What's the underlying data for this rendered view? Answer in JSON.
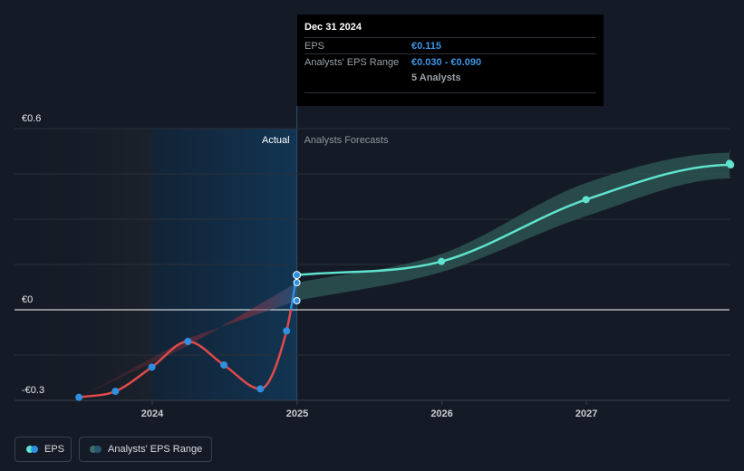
{
  "tooltip": {
    "date": "Dec 31 2024",
    "eps_label": "EPS",
    "eps_value": "€0.115",
    "range_label": "Analysts' EPS Range",
    "range_value": "€0.030 - €0.090",
    "analysts": "5 Analysts"
  },
  "labels": {
    "actual": "Actual",
    "forecast": "Analysts Forecasts"
  },
  "legend": {
    "eps": "EPS",
    "range": "Analysts' EPS Range"
  },
  "colors": {
    "background": "#151b26",
    "eps_actual_positive": "#2f8fe0",
    "eps_actual_negative": "#e04a4a",
    "eps_forecast": "#5fe3cf",
    "range_band_forecast": "#2f5b57",
    "range_band_past": "#b0353f",
    "highlight_region": "#0f2f4a"
  },
  "chart_data": {
    "type": "line",
    "title": "",
    "xlabel": "",
    "ylabel": "",
    "ylim": [
      -0.3,
      0.6
    ],
    "y_ticks": [
      {
        "value": 0.6,
        "label": "€0.6"
      },
      {
        "value": 0,
        "label": "€0"
      },
      {
        "value": -0.3,
        "label": "-€0.3"
      }
    ],
    "x_ticks": [
      "2024",
      "2025",
      "2026",
      "2027"
    ],
    "grid": true,
    "legend_position": "bottom-left",
    "series": [
      {
        "name": "EPS",
        "points": [
          {
            "x": "2023-06-30",
            "y": -0.29
          },
          {
            "x": "2023-09-30",
            "y": -0.27
          },
          {
            "x": "2023-12-31",
            "y": -0.19
          },
          {
            "x": "2024-03-31",
            "y": -0.105
          },
          {
            "x": "2024-06-30",
            "y": -0.183
          },
          {
            "x": "2024-09-30",
            "y": -0.262
          },
          {
            "x": "2024-12-05",
            "y": -0.07
          },
          {
            "x": "2024-12-31",
            "y": 0.115
          },
          {
            "x": "2025-12-31",
            "y": 0.16
          },
          {
            "x": "2026-12-31",
            "y": 0.365
          },
          {
            "x": "2027-12-31",
            "y": 0.48
          }
        ]
      }
    ],
    "range_series": {
      "name": "Analysts' EPS Range",
      "points": [
        {
          "x": "2024-12-31",
          "low": 0.03,
          "high": 0.09
        },
        {
          "x": "2025-12-31",
          "low": 0.125,
          "high": 0.185
        },
        {
          "x": "2026-12-31",
          "low": 0.31,
          "high": 0.42
        },
        {
          "x": "2027-12-31",
          "low": 0.435,
          "high": 0.52
        }
      ]
    },
    "range_markers": [
      {
        "x": "2024-12-31",
        "y": 0.09
      },
      {
        "x": "2024-12-31",
        "y": 0.03
      }
    ]
  }
}
